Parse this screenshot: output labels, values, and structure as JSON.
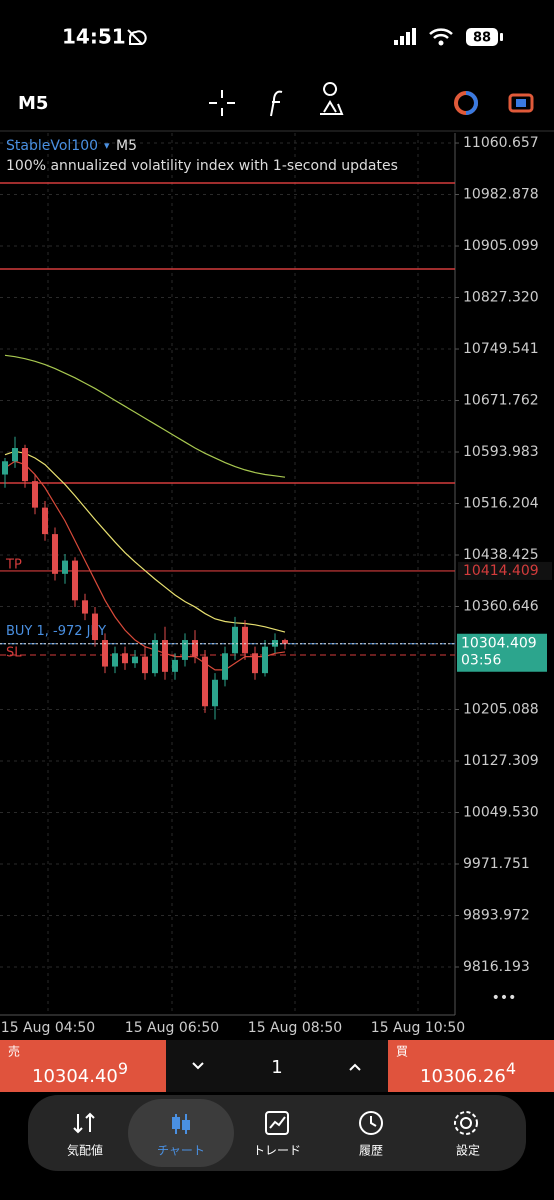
{
  "status_bar": {
    "time": "14:51",
    "battery": "88"
  },
  "toolbar": {
    "timeframe": "M5"
  },
  "chart_data": {
    "type": "candlestick",
    "symbol": "StableVol100",
    "symbol_timeframe": "M5",
    "description": "100% annualized volatility index with 1-second updates",
    "up_color": "#2ca58d",
    "down_color": "#e04b4b",
    "xlim": [
      -0.5,
      45
    ],
    "ylim": [
      9743.7,
      11075.8
    ],
    "yticks": [
      11060.657,
      10982.878,
      10905.099,
      {
        "value": 10827.32,
        "label": "10827.320"
      },
      10749.541,
      10671.762,
      10593.983,
      10516.204,
      10438.425,
      10360.646,
      10205.088,
      10127.309,
      {
        "value": 10049.53,
        "label": "10049.530"
      },
      9971.751,
      9893.972,
      9816.193
    ],
    "xticks": [
      {
        "value": 4.3,
        "label": "15 Aug 04:50"
      },
      {
        "value": 16.7,
        "label": "15 Aug 06:50"
      },
      {
        "value": 29,
        "label": "15 Aug 08:50"
      },
      {
        "value": 41.3,
        "label": "15 Aug 10:50"
      }
    ],
    "candles": [
      {
        "open": 10560,
        "high": 10585,
        "low": 10540,
        "close": 10580
      },
      {
        "open": 10580,
        "high": 10617,
        "low": 10570,
        "close": 10600
      },
      {
        "open": 10600,
        "high": 10605,
        "low": 10540,
        "close": 10550
      },
      {
        "open": 10550,
        "high": 10560,
        "low": 10500,
        "close": 10510
      },
      {
        "open": 10510,
        "high": 10520,
        "low": 10460,
        "close": 10470
      },
      {
        "open": 10470,
        "high": 10480,
        "low": 10400,
        "close": 10410
      },
      {
        "open": 10410,
        "high": 10440,
        "low": 10395,
        "close": 10430
      },
      {
        "open": 10430,
        "high": 10435,
        "low": 10360,
        "close": 10370
      },
      {
        "open": 10370,
        "high": 10380,
        "low": 10340,
        "close": 10350
      },
      {
        "open": 10350,
        "high": 10360,
        "low": 10300,
        "close": 10310
      },
      {
        "open": 10310,
        "high": 10320,
        "low": 10260,
        "close": 10270
      },
      {
        "open": 10270,
        "high": 10300,
        "low": 10260,
        "close": 10290
      },
      {
        "open": 10290,
        "high": 10300,
        "low": 10265,
        "close": 10275
      },
      {
        "open": 10275,
        "high": 10295,
        "low": 10268,
        "close": 10285
      },
      {
        "open": 10285,
        "high": 10300,
        "low": 10250,
        "close": 10260
      },
      {
        "open": 10260,
        "high": 10320,
        "low": 10255,
        "close": 10310
      },
      {
        "open": 10310,
        "high": 10330,
        "low": 10250,
        "close": 10262
      },
      {
        "open": 10262,
        "high": 10290,
        "low": 10250,
        "close": 10280
      },
      {
        "open": 10280,
        "high": 10320,
        "low": 10270,
        "close": 10310
      },
      {
        "open": 10310,
        "high": 10325,
        "low": 10275,
        "close": 10285
      },
      {
        "open": 10285,
        "high": 10295,
        "low": 10200,
        "close": 10210
      },
      {
        "open": 10210,
        "high": 10260,
        "low": 10190,
        "close": 10250
      },
      {
        "open": 10250,
        "high": 10300,
        "low": 10240,
        "close": 10290
      },
      {
        "open": 10290,
        "high": 10345,
        "low": 10280,
        "close": 10330
      },
      {
        "open": 10330,
        "high": 10340,
        "low": 10280,
        "close": 10290
      },
      {
        "open": 10290,
        "high": 10300,
        "low": 10250,
        "close": 10260
      },
      {
        "open": 10260,
        "high": 10310,
        "low": 10255,
        "close": 10300
      },
      {
        "open": 10300,
        "high": 10320,
        "low": 10290,
        "close": 10310
      },
      {
        "open": 10310,
        "high": 10312,
        "low": 10296,
        "close": 10304.409
      }
    ],
    "series": [
      {
        "color": "#a8c850",
        "values": [
          10740,
          10738,
          10735,
          10731,
          10726,
          10720,
          10713,
          10706,
          10698,
          10690,
          10681,
          10672,
          10663,
          10654,
          10645,
          10636,
          10627,
          10618,
          10609,
          10600,
          10592,
          10585,
          10578,
          10572,
          10567,
          10563,
          10560,
          10558,
          10556
        ]
      },
      {
        "color": "#e8e070",
        "values": [
          10590,
          10595,
          10592,
          10585,
          10575,
          10560,
          10545,
          10528,
          10510,
          10492,
          10475,
          10458,
          10442,
          10428,
          10415,
          10402,
          10390,
          10378,
          10368,
          10360,
          10350,
          10342,
          10338,
          10336,
          10335,
          10333,
          10330,
          10326,
          10322
        ]
      },
      {
        "color": "#d84a3a",
        "values": [
          10570,
          10580,
          10575,
          10560,
          10540,
          10515,
          10490,
          10460,
          10430,
          10400,
          10370,
          10345,
          10325,
          10310,
          10300,
          10295,
          10290,
          10285,
          10285,
          10285,
          10275,
          10265,
          10265,
          10275,
          10285,
          10285,
          10285,
          10290,
          10292
        ]
      }
    ],
    "levels": [
      11000.2,
      10870.4,
      10547.2
    ],
    "level_color": "#d43c3c",
    "trade": {
      "tp_label": "TP",
      "tp": 10414.409,
      "position_label": "BUY 1, -972 JPY",
      "entry": 10304.409,
      "sl_label": "SL",
      "sl": 10287.4
    },
    "current_price": 10304.409,
    "bar_timer": "03:56"
  },
  "quote_bar": {
    "sell_label": "売",
    "sell_price": "10304.40",
    "sell_price_last_digit": "9",
    "volume": "1",
    "buy_label": "買",
    "buy_price": "10306.26",
    "buy_price_last_digit": "4"
  },
  "nav": {
    "items": [
      "気配値",
      "チャート",
      "トレード",
      "履歴",
      "設定"
    ]
  }
}
